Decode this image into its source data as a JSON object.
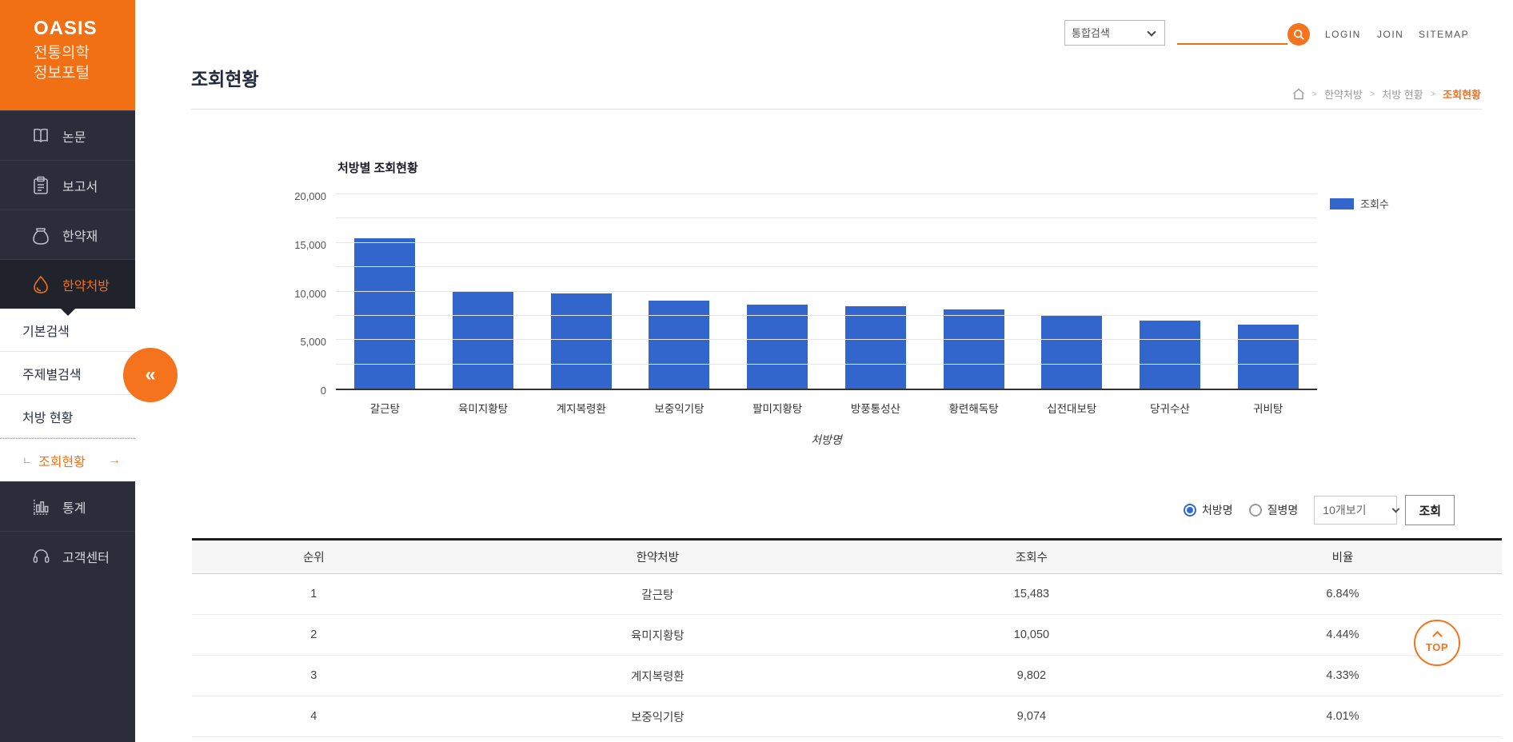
{
  "logo": {
    "brand": "OASIS",
    "line1": "전통의학",
    "line2": "정보포털"
  },
  "sidebar": {
    "collapse_label": "«",
    "items": [
      {
        "label": "논문",
        "icon": "book-icon"
      },
      {
        "label": "보고서",
        "icon": "report-icon"
      },
      {
        "label": "한약재",
        "icon": "herb-pouch-icon"
      },
      {
        "label": "한약처방",
        "icon": "droplet-icon",
        "active": true
      }
    ],
    "submenu": [
      {
        "label": "기본검색"
      },
      {
        "label": "주제별검색"
      },
      {
        "label": "처방 현황"
      },
      {
        "label": "조회현황",
        "prefix": "ㄴ",
        "arrow": "→",
        "current": true
      }
    ],
    "bottom_items": [
      {
        "label": "통계",
        "icon": "bar-chart-icon"
      },
      {
        "label": "고객센터",
        "icon": "headset-icon"
      }
    ]
  },
  "topbar": {
    "search_category": "통합검색",
    "search_value": "",
    "login": "LOGIN",
    "join": "JOIN",
    "sitemap": "SITEMAP"
  },
  "page": {
    "title": "조회현황",
    "breadcrumb": [
      "한약처방",
      "처방 현황",
      "조회현황"
    ]
  },
  "chart_data": {
    "type": "bar",
    "title": "처방별 조회현황",
    "categories": [
      "갈근탕",
      "육미지황탕",
      "계지복령환",
      "보중익기탕",
      "팔미지황탕",
      "방풍통성산",
      "황련해독탕",
      "십전대보탕",
      "당귀수산",
      "귀비탕"
    ],
    "values": [
      15483,
      10050,
      9802,
      9074,
      8650,
      8480,
      8150,
      7570,
      7000,
      6580
    ],
    "xlabel": "처방명",
    "ylabel": "",
    "ylim": [
      0,
      20000
    ],
    "yticks": [
      0,
      5000,
      10000,
      15000,
      20000
    ],
    "grid_interval": 2500,
    "grid": true,
    "legend": [
      "조회수"
    ],
    "legend_position": "right",
    "bar_color": "#3366cc"
  },
  "controls": {
    "radio_prescription": "처방명",
    "radio_disease": "질병명",
    "page_size": "10개보기",
    "query_button": "조회"
  },
  "table": {
    "headers": [
      "순위",
      "한약처방",
      "조회수",
      "비율"
    ],
    "rows": [
      [
        "1",
        "갈근탕",
        "15,483",
        "6.84%"
      ],
      [
        "2",
        "육미지황탕",
        "10,050",
        "4.44%"
      ],
      [
        "3",
        "계지복령환",
        "9,802",
        "4.33%"
      ],
      [
        "4",
        "보중익기탕",
        "9,074",
        "4.01%"
      ]
    ]
  },
  "top_button": {
    "label": "TOP"
  },
  "colors": {
    "accent_orange": "#f4731c",
    "bar_blue": "#3366cc",
    "sidebar_dark": "#2b2e3a"
  }
}
